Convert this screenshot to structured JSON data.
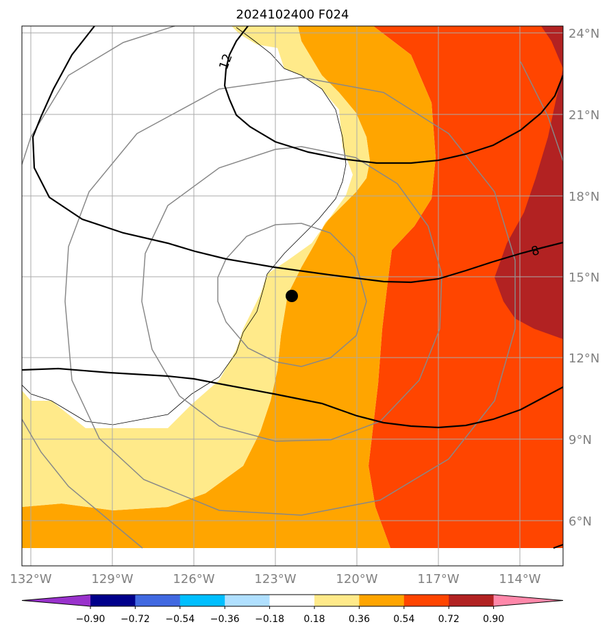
{
  "title": "2024102400 F024",
  "longitude_ticks": [
    "132°W",
    "129°W",
    "126°W",
    "123°W",
    "120°W",
    "117°W",
    "114°W"
  ],
  "latitude_ticks": [
    "24°N",
    "21°N",
    "18°N",
    "15°N",
    "12°N",
    "9°N",
    "6°N"
  ],
  "contour_labels": [
    "12",
    "8"
  ],
  "colorbar": {
    "colors": [
      "#9932cc",
      "#00008b",
      "#4169e1",
      "#00bfff",
      "#b0e0ff",
      "#ffffff",
      "#ffea8a",
      "#ffa500",
      "#ff4500",
      "#b22222",
      "#ff88aa"
    ],
    "labels": [
      "−0.90",
      "−0.72",
      "−0.54",
      "−0.36",
      "−0.18",
      "0.18",
      "0.36",
      "0.54",
      "0.72",
      "0.90"
    ]
  },
  "map_features": [
    "storm-center-marker",
    "range-rings",
    "filled-anomaly-contours",
    "black-line-contours"
  ]
}
